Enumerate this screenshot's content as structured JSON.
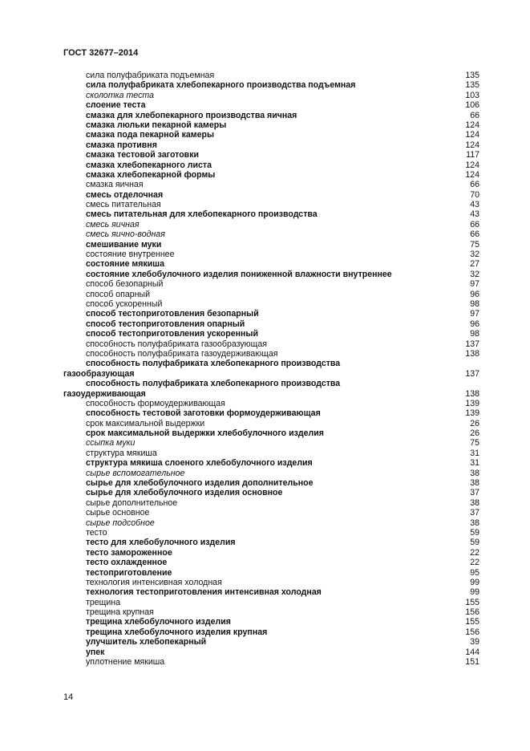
{
  "header": {
    "title": "ГОСТ 32677–2014"
  },
  "page_number": "14",
  "entries": [
    {
      "text": [
        "сила полуфабриката подъемная"
      ],
      "style": "n",
      "page": "135"
    },
    {
      "text": [
        "сила полуфабриката хлебопекарного производства подъемная"
      ],
      "style": "b",
      "page": "135"
    },
    {
      "text": [
        "сколотка теста"
      ],
      "style": "i",
      "page": "103"
    },
    {
      "text": [
        "слоение теста"
      ],
      "style": "b",
      "page": "106"
    },
    {
      "text": [
        "смазка для хлебопекарного производства яичная"
      ],
      "style": "b",
      "page": "66"
    },
    {
      "text": [
        "смазка люльки пекарной камеры"
      ],
      "style": "b",
      "page": "124"
    },
    {
      "text": [
        "смазка пода пекарной камеры"
      ],
      "style": "b",
      "page": "124"
    },
    {
      "text": [
        "смазка противня"
      ],
      "style": "b",
      "page": "124"
    },
    {
      "text": [
        "смазка тестовой заготовки"
      ],
      "style": "b",
      "page": "117"
    },
    {
      "text": [
        "смазка хлебопекарного листа"
      ],
      "style": "b",
      "page": "124"
    },
    {
      "text": [
        "смазка хлебопекарной формы"
      ],
      "style": "b",
      "page": "124"
    },
    {
      "text": [
        "смазка яичная"
      ],
      "style": "n",
      "page": "66"
    },
    {
      "text": [
        "смесь отделочная"
      ],
      "style": "b",
      "page": "70"
    },
    {
      "text": [
        "смесь питательная"
      ],
      "style": "n",
      "page": "43"
    },
    {
      "text": [
        "смесь питательная для хлебопекарного производства"
      ],
      "style": "b",
      "page": "43"
    },
    {
      "text": [
        "смесь яичная"
      ],
      "style": "i",
      "page": "66"
    },
    {
      "text": [
        "смесь яично-водная"
      ],
      "style": "i",
      "page": "66"
    },
    {
      "text": [
        "смешивание муки"
      ],
      "style": "b",
      "page": "75"
    },
    {
      "text": [
        "состояние внутреннее"
      ],
      "style": "n",
      "page": "32"
    },
    {
      "text": [
        "состояние мякиша"
      ],
      "style": "b",
      "page": "27"
    },
    {
      "text": [
        "состояние хлебобулочного изделия пониженной влажности внутреннее"
      ],
      "style": "b",
      "page": "32"
    },
    {
      "text": [
        "способ безопарный"
      ],
      "style": "n",
      "page": "97"
    },
    {
      "text": [
        "способ опарный"
      ],
      "style": "n",
      "page": "96"
    },
    {
      "text": [
        "способ ускоренный"
      ],
      "style": "n",
      "page": "98"
    },
    {
      "text": [
        "способ тестоприготовления безопарный"
      ],
      "style": "b",
      "page": "97"
    },
    {
      "text": [
        "способ тестоприготовления опарный"
      ],
      "style": "b",
      "page": "96"
    },
    {
      "text": [
        "способ тестоприготовления ускоренный"
      ],
      "style": "b",
      "page": "98"
    },
    {
      "text": [
        "способность полуфабриката газообразующая"
      ],
      "style": "n",
      "page": "137"
    },
    {
      "text": [
        "способность полуфабриката газоудерживающая"
      ],
      "style": "n",
      "page": "138"
    },
    {
      "text": [
        "способность полуфабриката хлебопекарного производства",
        "газообразующая"
      ],
      "style": "b",
      "page": "137"
    },
    {
      "text": [
        "способность полуфабриката хлебопекарного  производства",
        "газоудерживающая"
      ],
      "style": "b",
      "page": "138"
    },
    {
      "text": [
        "способность формоудерживающая"
      ],
      "style": "n",
      "page": "139"
    },
    {
      "text": [
        "способность тестовой заготовки формоудерживающая"
      ],
      "style": "b",
      "page": "139"
    },
    {
      "text": [
        "срок максимальной выдержки"
      ],
      "style": "n",
      "page": "26"
    },
    {
      "text": [
        "срок максимальной выдержки хлебобулочного изделия"
      ],
      "style": "b",
      "page": "26"
    },
    {
      "text": [
        "ссыпка муки"
      ],
      "style": "i",
      "page": "75"
    },
    {
      "text": [
        "структура мякиша"
      ],
      "style": "n",
      "page": "31"
    },
    {
      "text": [
        "структура мякиша слоеного хлебобулочного изделия"
      ],
      "style": "b",
      "page": "31"
    },
    {
      "text": [
        "сырье вспомогательное"
      ],
      "style": "i",
      "page": "38"
    },
    {
      "text": [
        "сырье для хлебобулочного изделия дополнительное"
      ],
      "style": "b",
      "page": "38"
    },
    {
      "text": [
        "сырье для хлебобулочного изделия основное"
      ],
      "style": "b",
      "page": "37"
    },
    {
      "text": [
        "сырье дополнительное"
      ],
      "style": "n",
      "page": "38"
    },
    {
      "text": [
        "сырье основное"
      ],
      "style": "n",
      "page": "37"
    },
    {
      "text": [
        "сырье подсобное"
      ],
      "style": "i",
      "page": "38"
    },
    {
      "text": [
        "тесто"
      ],
      "style": "n",
      "page": "59"
    },
    {
      "text": [
        "тесто для хлебобулочного изделия"
      ],
      "style": "b",
      "page": "59"
    },
    {
      "text": [
        "тесто замороженное"
      ],
      "style": "b",
      "page": "22"
    },
    {
      "text": [
        "тесто охлажденное"
      ],
      "style": "b",
      "page": "22"
    },
    {
      "text": [
        "тестоприготовление"
      ],
      "style": "b",
      "page": "95"
    },
    {
      "text": [
        "технология интенсивная холодная"
      ],
      "style": "n",
      "page": "99"
    },
    {
      "text": [
        "технология тестоприготовления интенсивная холодная"
      ],
      "style": "b",
      "page": "99"
    },
    {
      "text": [
        "трещина"
      ],
      "style": "n",
      "page": "155"
    },
    {
      "text": [
        "трещина крупная"
      ],
      "style": "n",
      "page": "156"
    },
    {
      "text": [
        "трещина хлебобулочного изделия"
      ],
      "style": "b",
      "page": "155"
    },
    {
      "text": [
        "трещина хлебобулочного изделия крупная"
      ],
      "style": "b",
      "page": "156"
    },
    {
      "text": [
        "улучшитель хлебопекарный"
      ],
      "style": "b",
      "page": "39"
    },
    {
      "text": [
        "упек"
      ],
      "style": "b",
      "page": "144"
    },
    {
      "text": [
        "уплотнение мякиша"
      ],
      "style": "n",
      "page": "151"
    }
  ]
}
